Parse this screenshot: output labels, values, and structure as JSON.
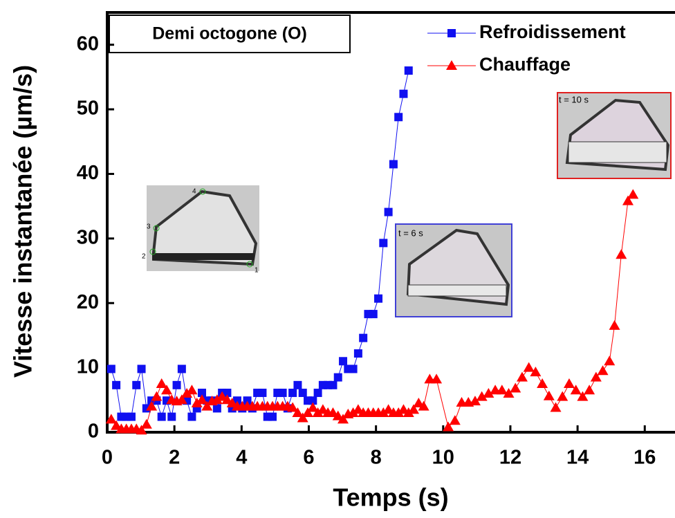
{
  "chart_data": {
    "type": "line",
    "xlabel": "Temps (s)",
    "ylabel": "Vitesse instantanée (µm/s)",
    "label_box": "Demi octogone (O)",
    "xlim": [
      0,
      16.9
    ],
    "ylim": [
      0,
      65
    ],
    "xticks": [
      0,
      2,
      4,
      6,
      8,
      10,
      12,
      14,
      16
    ],
    "yticks": [
      0,
      10,
      20,
      30,
      40,
      50,
      60
    ],
    "legend": "upper right",
    "insets": [
      {
        "label": "t = 6 s",
        "color": "#3f3fd6"
      },
      {
        "label": "t = 10 s",
        "color": "#e02020"
      }
    ],
    "corner_labels": [
      "1",
      "2",
      "3",
      "4"
    ],
    "series": [
      {
        "name": "Refroidissement",
        "color": "#1010f0",
        "marker": "square",
        "x": [
          0.12,
          0.27,
          0.42,
          0.57,
          0.72,
          0.87,
          1.02,
          1.17,
          1.32,
          1.47,
          1.62,
          1.77,
          1.92,
          2.07,
          2.22,
          2.37,
          2.52,
          2.67,
          2.82,
          2.97,
          3.12,
          3.27,
          3.42,
          3.57,
          3.72,
          3.87,
          4.02,
          4.17,
          4.32,
          4.47,
          4.62,
          4.77,
          4.92,
          5.07,
          5.22,
          5.37,
          5.52,
          5.67,
          5.82,
          5.97,
          6.12,
          6.27,
          6.42,
          6.57,
          6.72,
          6.87,
          7.02,
          7.17,
          7.32,
          7.47,
          7.62,
          7.77,
          7.92,
          8.07,
          8.22,
          8.37,
          8.52,
          8.67,
          8.82,
          8.97
        ],
        "values": [
          9.8,
          7.3,
          2.4,
          2.4,
          2.4,
          7.3,
          9.8,
          3.7,
          4.9,
          4.9,
          2.4,
          4.9,
          2.4,
          7.3,
          9.8,
          4.9,
          2.4,
          3.7,
          6.1,
          4.9,
          4.9,
          3.7,
          6.1,
          6.1,
          3.7,
          4.9,
          3.7,
          4.9,
          3.7,
          6.1,
          6.1,
          2.4,
          2.4,
          6.1,
          6.1,
          3.7,
          6.1,
          7.3,
          6.1,
          4.9,
          4.9,
          6.1,
          7.3,
          7.3,
          7.3,
          8.5,
          11.0,
          9.8,
          9.8,
          12.2,
          14.6,
          18.3,
          18.3,
          20.7,
          29.3,
          34.1,
          41.5,
          48.8,
          52.4,
          56.0
        ]
      },
      {
        "name": "Chauffage",
        "color": "#ff0000",
        "marker": "triangle",
        "x": [
          0.12,
          0.27,
          0.42,
          0.57,
          0.72,
          0.87,
          1.02,
          1.17,
          1.32,
          1.47,
          1.62,
          1.77,
          1.92,
          2.07,
          2.22,
          2.37,
          2.52,
          2.67,
          2.82,
          2.97,
          3.12,
          3.27,
          3.42,
          3.57,
          3.72,
          3.87,
          4.02,
          4.17,
          4.32,
          4.47,
          4.62,
          4.77,
          4.92,
          5.07,
          5.22,
          5.37,
          5.52,
          5.67,
          5.82,
          5.97,
          6.12,
          6.27,
          6.42,
          6.57,
          6.72,
          6.87,
          7.02,
          7.17,
          7.32,
          7.47,
          7.62,
          7.77,
          7.92,
          8.07,
          8.22,
          8.37,
          8.52,
          8.67,
          8.82,
          8.97,
          9.12,
          9.27,
          9.42,
          9.6,
          9.8,
          10.15,
          10.35,
          10.55,
          10.75,
          10.95,
          11.15,
          11.35,
          11.55,
          11.75,
          11.95,
          12.15,
          12.35,
          12.55,
          12.75,
          12.95,
          13.15,
          13.35,
          13.55,
          13.75,
          13.95,
          14.15,
          14.35,
          14.55,
          14.75,
          14.95,
          15.1,
          15.3,
          15.5,
          15.65
        ],
        "values": [
          2.0,
          1.0,
          0.5,
          0.5,
          0.5,
          0.5,
          0.3,
          1.2,
          4.0,
          5.5,
          7.5,
          6.5,
          5.0,
          4.8,
          5.0,
          6.0,
          6.5,
          4.5,
          5.0,
          4.0,
          4.8,
          5.0,
          5.5,
          5.0,
          4.5,
          4.0,
          4.0,
          4.0,
          4.0,
          4.0,
          4.0,
          4.0,
          4.0,
          4.0,
          4.0,
          4.0,
          3.8,
          3.0,
          2.2,
          3.0,
          3.8,
          3.0,
          3.5,
          3.0,
          3.0,
          2.5,
          2.0,
          2.8,
          3.0,
          3.5,
          3.0,
          3.0,
          3.0,
          3.0,
          3.0,
          3.5,
          3.0,
          3.0,
          3.5,
          3.0,
          3.5,
          4.5,
          4.0,
          8.2,
          8.2,
          0.8,
          1.8,
          4.6,
          4.6,
          4.8,
          5.5,
          6.0,
          6.5,
          6.5,
          6.0,
          6.8,
          8.5,
          10.0,
          9.3,
          7.5,
          5.6,
          3.8,
          5.5,
          7.5,
          6.5,
          5.5,
          6.5,
          8.5,
          9.5,
          11.0,
          16.5,
          27.5,
          35.8,
          36.8
        ]
      }
    ]
  }
}
